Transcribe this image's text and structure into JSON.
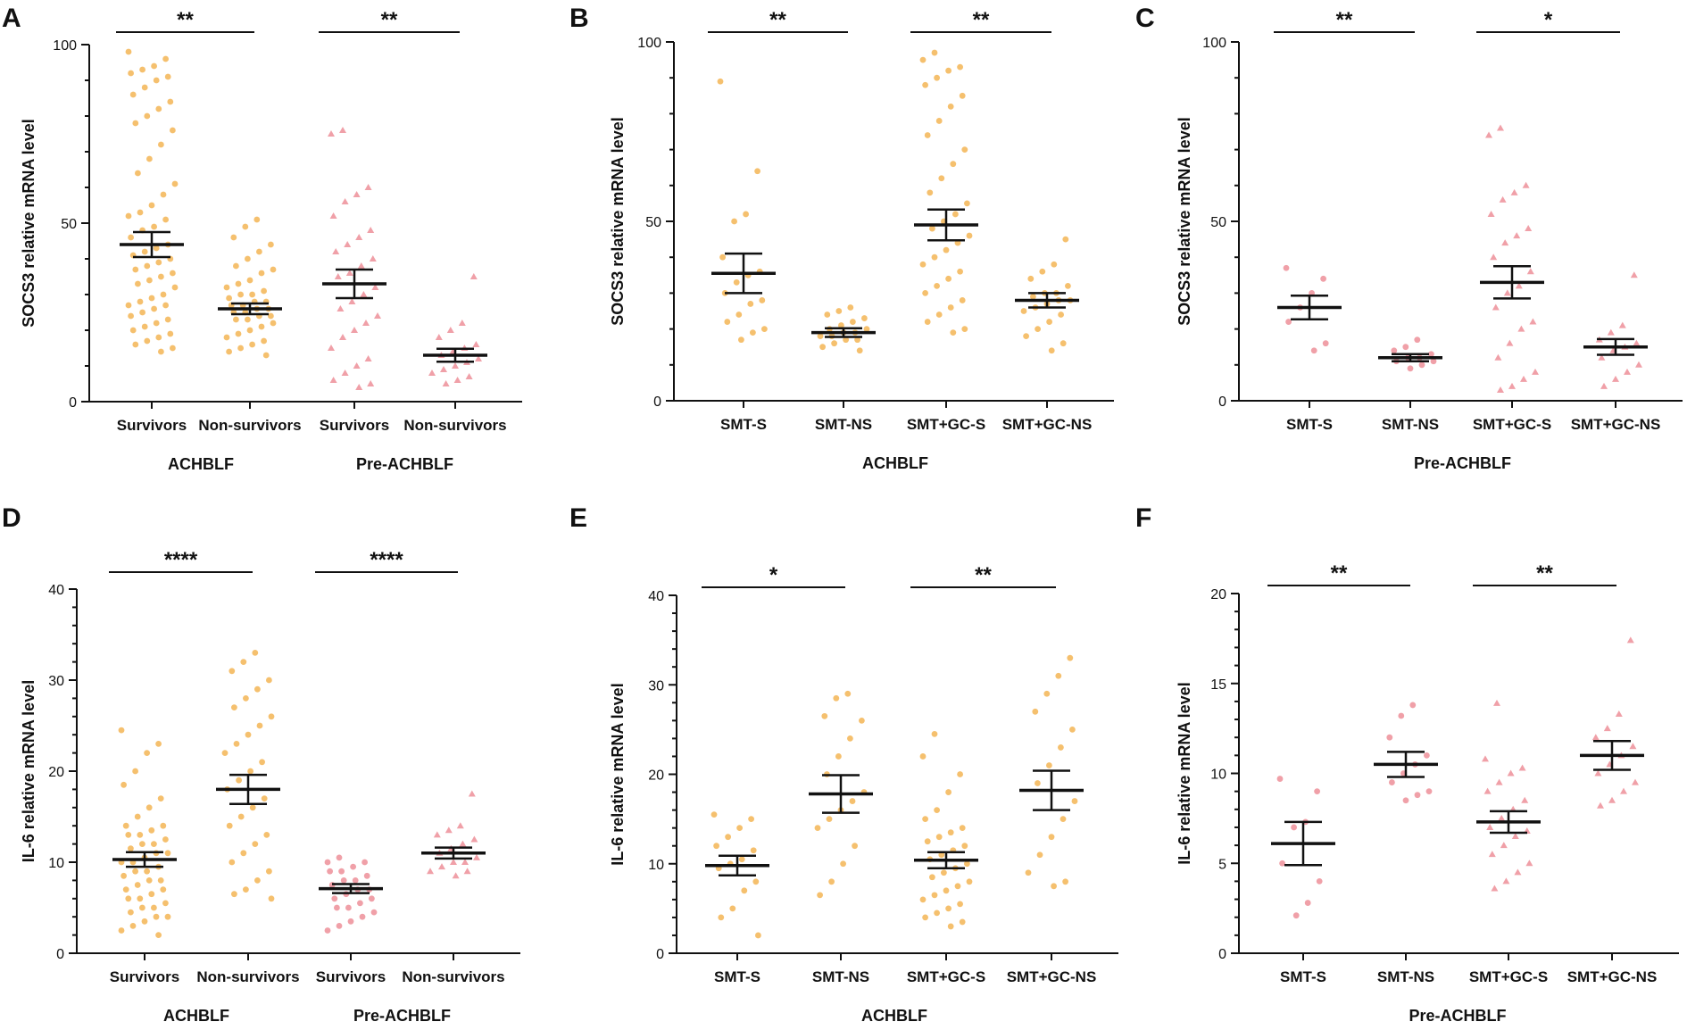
{
  "figure": {
    "colors": {
      "orange": "#f5c06e",
      "pink": "#f0a0a8",
      "axis": "#111111"
    }
  },
  "chart_data": [
    {
      "panel": "A",
      "type": "scatter",
      "ylabel": "SOCS3  relative mRNA level",
      "ylim": [
        0,
        100
      ],
      "yticks": [
        0,
        50,
        100
      ],
      "categories": [
        "Survivors",
        "Non-survivors",
        "Survivors",
        "Non-survivors"
      ],
      "groups": [
        {
          "label": "ACHBLF",
          "span": [
            0,
            1
          ]
        },
        {
          "label": "Pre-ACHBLF",
          "span": [
            2,
            3
          ]
        }
      ],
      "colors": [
        "orange",
        "orange",
        "pink",
        "pink"
      ],
      "markers": [
        "circle",
        "circle",
        "triangle",
        "triangle"
      ],
      "mean": [
        44,
        26,
        33,
        13
      ],
      "sem": [
        3.5,
        1.5,
        4,
        1.8
      ],
      "points": [
        [
          98,
          96,
          94,
          93,
          92,
          91,
          90,
          88,
          86,
          84,
          82,
          80,
          78,
          76,
          72,
          68,
          64,
          61,
          58,
          55,
          53,
          52,
          51,
          49,
          48,
          46,
          44,
          43,
          42,
          41,
          40,
          39,
          38,
          37,
          36,
          35,
          34,
          33,
          32,
          30,
          29,
          28,
          27,
          27,
          26,
          25,
          24,
          23,
          22,
          21,
          20,
          19,
          18,
          17,
          16,
          15,
          14
        ],
        [
          51,
          49,
          46,
          44,
          42,
          40,
          38,
          37,
          36,
          34,
          33,
          32,
          31,
          30,
          30,
          29,
          28,
          28,
          27,
          27,
          26,
          26,
          25,
          25,
          24,
          24,
          23,
          23,
          22,
          21,
          20,
          19,
          18,
          17,
          16,
          15,
          14,
          13
        ],
        [
          76,
          75,
          60,
          58,
          56,
          52,
          48,
          46,
          44,
          42,
          40,
          38,
          36,
          35,
          32,
          30,
          28,
          26,
          24,
          22,
          20,
          18,
          15,
          12,
          10,
          8,
          6,
          5,
          4
        ],
        [
          35,
          22,
          20,
          18,
          16,
          15,
          14,
          13,
          12,
          11,
          10,
          9,
          8,
          7,
          6,
          5
        ]
      ],
      "significance": [
        {
          "pair": [
            0,
            1
          ],
          "label": "**"
        },
        {
          "pair": [
            2,
            3
          ],
          "label": "**"
        }
      ]
    },
    {
      "panel": "B",
      "type": "scatter",
      "ylabel": "SOCS3  relative mRNA level",
      "ylim": [
        0,
        100
      ],
      "yticks": [
        0,
        50,
        100
      ],
      "categories": [
        "SMT-S",
        "SMT-NS",
        "SMT+GC-S",
        "SMT+GC-NS"
      ],
      "groups": [
        {
          "label": "ACHBLF",
          "span": [
            0,
            3
          ]
        }
      ],
      "colors": [
        "orange",
        "orange",
        "orange",
        "orange"
      ],
      "markers": [
        "circle",
        "circle",
        "circle",
        "circle"
      ],
      "mean": [
        35.5,
        19,
        49,
        28
      ],
      "sem": [
        5.5,
        1.2,
        4.3,
        2
      ],
      "points": [
        [
          89,
          64,
          52,
          50,
          40,
          36,
          35,
          33,
          30,
          28,
          27,
          24,
          22,
          20,
          19,
          17
        ],
        [
          26,
          25,
          24,
          23,
          22,
          21,
          20,
          20,
          19,
          19,
          18,
          18,
          17,
          17,
          16,
          15,
          14
        ],
        [
          97,
          95,
          93,
          92,
          90,
          88,
          85,
          82,
          78,
          74,
          70,
          66,
          62,
          58,
          55,
          52,
          50,
          48,
          46,
          44,
          42,
          40,
          38,
          36,
          34,
          32,
          30,
          28,
          26,
          24,
          22,
          20,
          19
        ],
        [
          45,
          38,
          36,
          34,
          32,
          30,
          30,
          29,
          28,
          28,
          27,
          26,
          25,
          24,
          22,
          20,
          18,
          16,
          14
        ]
      ],
      "significance": [
        {
          "pair": [
            0,
            1
          ],
          "label": "**"
        },
        {
          "pair": [
            2,
            3
          ],
          "label": "**"
        }
      ]
    },
    {
      "panel": "C",
      "type": "scatter",
      "ylabel": "SOCS3  relative mRNA level",
      "ylim": [
        0,
        100
      ],
      "yticks": [
        0,
        50,
        100
      ],
      "categories": [
        "SMT-S",
        "SMT-NS",
        "SMT+GC-S",
        "SMT+GC-NS"
      ],
      "groups": [
        {
          "label": "Pre-ACHBLF",
          "span": [
            0,
            3
          ]
        }
      ],
      "colors": [
        "pink",
        "pink",
        "pink",
        "pink"
      ],
      "markers": [
        "circle",
        "circle",
        "triangle",
        "triangle"
      ],
      "mean": [
        26,
        12,
        33,
        15
      ],
      "sem": [
        3.3,
        1,
        4.5,
        2.2
      ],
      "points": [
        [
          37,
          34,
          30,
          26,
          22,
          16,
          14
        ],
        [
          17,
          15,
          14,
          13,
          12,
          12,
          11,
          11,
          10,
          9
        ],
        [
          76,
          74,
          60,
          58,
          56,
          52,
          48,
          46,
          44,
          40,
          36,
          32,
          30,
          26,
          22,
          20,
          16,
          12,
          8,
          6,
          4,
          3
        ],
        [
          35,
          21,
          19,
          17,
          16,
          15,
          14,
          12,
          10,
          8,
          6,
          4
        ]
      ],
      "significance": [
        {
          "pair": [
            0,
            1
          ],
          "label": "**"
        },
        {
          "pair": [
            2,
            3
          ],
          "label": "*"
        }
      ]
    },
    {
      "panel": "D",
      "type": "scatter",
      "ylabel": "IL-6  relative mRNA level",
      "ylim": [
        0,
        40
      ],
      "yticks": [
        0,
        10,
        20,
        30,
        40
      ],
      "categories": [
        "Survivors",
        "Non-survivors",
        "Survivors",
        "Non-survivors"
      ],
      "groups": [
        {
          "label": "ACHBLF",
          "span": [
            0,
            1
          ]
        },
        {
          "label": "Pre-ACHBLF",
          "span": [
            2,
            3
          ]
        }
      ],
      "colors": [
        "orange",
        "orange",
        "pink",
        "pink"
      ],
      "markers": [
        "circle",
        "circle",
        "circle",
        "triangle"
      ],
      "mean": [
        10.3,
        18,
        7.1,
        11
      ],
      "sem": [
        0.8,
        1.6,
        0.5,
        0.6
      ],
      "points": [
        [
          24.5,
          23,
          22,
          20,
          18.5,
          17,
          16,
          15,
          14,
          14,
          13.5,
          13,
          13,
          12.5,
          12,
          12,
          11.5,
          11,
          11,
          10.5,
          10,
          10,
          9.5,
          9,
          9,
          8.5,
          8,
          8,
          7.5,
          7,
          7,
          6.5,
          6,
          6,
          5.5,
          5,
          5,
          4.5,
          4,
          4,
          3.5,
          3,
          2.5,
          2
        ],
        [
          33,
          32,
          31,
          30,
          29,
          28,
          27,
          26,
          25,
          24,
          23,
          22,
          21,
          20,
          19,
          18,
          17,
          16,
          15,
          14,
          13,
          12,
          11,
          10,
          9,
          8,
          7,
          6.5,
          6
        ],
        [
          10.5,
          10,
          10,
          9.5,
          9,
          9,
          8.5,
          8,
          8,
          7.5,
          7,
          7,
          6.5,
          6,
          6,
          5.5,
          5,
          5,
          4.5,
          4,
          3.5,
          3,
          2.5
        ],
        [
          17.5,
          14,
          13.5,
          13,
          12.5,
          12,
          11.5,
          11,
          10.5,
          10,
          10,
          9.5,
          9,
          9,
          8.5
        ]
      ],
      "significance": [
        {
          "pair": [
            0,
            1
          ],
          "label": "****"
        },
        {
          "pair": [
            2,
            3
          ],
          "label": "****"
        }
      ]
    },
    {
      "panel": "E",
      "type": "scatter",
      "ylabel": "IL-6  relative mRNA level",
      "ylim": [
        0,
        40
      ],
      "yticks": [
        0,
        10,
        20,
        30,
        40
      ],
      "categories": [
        "SMT-S",
        "SMT-NS",
        "SMT+GC-S",
        "SMT+GC-NS"
      ],
      "groups": [
        {
          "label": "ACHBLF",
          "span": [
            0,
            3
          ]
        }
      ],
      "colors": [
        "orange",
        "orange",
        "orange",
        "orange"
      ],
      "markers": [
        "circle",
        "circle",
        "circle",
        "circle"
      ],
      "mean": [
        9.8,
        17.8,
        10.4,
        18.2
      ],
      "sem": [
        1.1,
        2.1,
        0.9,
        2.2
      ],
      "points": [
        [
          15.5,
          15,
          14,
          13,
          12,
          11.5,
          10.5,
          10,
          9.5,
          8,
          7,
          5,
          4,
          2
        ],
        [
          29,
          28.5,
          26.5,
          26,
          24,
          22,
          20,
          18,
          17,
          16,
          15,
          14,
          12,
          10,
          8,
          6.5
        ],
        [
          24.5,
          22,
          20,
          18,
          16,
          15,
          14,
          13.5,
          13,
          12.5,
          12,
          11.5,
          11,
          10.5,
          10,
          9.5,
          9,
          8.5,
          8,
          7.5,
          7,
          6.5,
          6,
          5.5,
          5,
          4.5,
          4,
          3.5,
          3
        ],
        [
          33,
          31,
          29,
          27,
          25,
          23,
          21,
          19,
          17,
          15,
          13,
          11,
          9,
          8,
          7.5
        ]
      ],
      "significance": [
        {
          "pair": [
            0,
            1
          ],
          "label": "*"
        },
        {
          "pair": [
            2,
            3
          ],
          "label": "**"
        }
      ]
    },
    {
      "panel": "F",
      "type": "scatter",
      "ylabel": "IL-6  relative mRNA level",
      "ylim": [
        0,
        20
      ],
      "yticks": [
        0,
        5,
        10,
        15,
        20
      ],
      "categories": [
        "SMT-S",
        "SMT-NS",
        "SMT+GC-S",
        "SMT+GC-NS"
      ],
      "groups": [
        {
          "label": "Pre-ACHBLF",
          "span": [
            0,
            3
          ]
        }
      ],
      "colors": [
        "pink",
        "pink",
        "pink",
        "pink"
      ],
      "markers": [
        "circle",
        "circle",
        "triangle",
        "triangle"
      ],
      "mean": [
        6.1,
        10.5,
        7.3,
        11
      ],
      "sem": [
        1.2,
        0.7,
        0.6,
        0.8
      ],
      "points": [
        [
          9.7,
          9,
          7.3,
          7,
          5,
          4,
          2.8,
          2.1
        ],
        [
          13.8,
          13.2,
          12,
          11,
          10.5,
          10,
          9.5,
          9,
          8.8,
          8.5
        ],
        [
          13.9,
          10.8,
          10.3,
          10,
          9.5,
          9,
          8.5,
          8,
          7.5,
          7,
          6.8,
          6.5,
          6,
          5.5,
          5,
          4.5,
          4,
          3.6
        ],
        [
          17.4,
          13.3,
          12.5,
          12,
          11.5,
          11,
          10.5,
          10,
          9.5,
          9,
          8.5,
          8.2
        ]
      ],
      "significance": [
        {
          "pair": [
            0,
            1
          ],
          "label": "**"
        },
        {
          "pair": [
            2,
            3
          ],
          "label": "**"
        }
      ]
    }
  ]
}
